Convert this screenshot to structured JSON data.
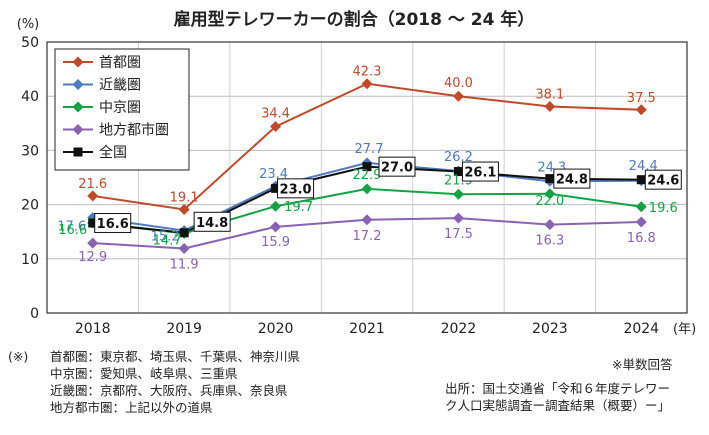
{
  "chart_data": {
    "type": "line",
    "title": "雇用型テレワーカーの割合（2018 ～ 24 年）",
    "ylabel": "(%)",
    "x_unit_label": "(年)",
    "categories": [
      "2018",
      "2019",
      "2020",
      "2021",
      "2022",
      "2023",
      "2024"
    ],
    "ylim": [
      0,
      50
    ],
    "yticks": [
      "0",
      "10",
      "20",
      "30",
      "40",
      "50"
    ],
    "grid": true,
    "legend_position": "top-left",
    "series": [
      {
        "name": "首都圏",
        "color": "#c0492a",
        "marker": "diamond",
        "values": [
          21.6,
          19.1,
          34.4,
          42.3,
          40.0,
          38.1,
          37.5
        ],
        "labels": [
          "21.6",
          "19.1",
          "34.4",
          "42.3",
          "40.0",
          "38.1",
          "37.5"
        ]
      },
      {
        "name": "近畿圏",
        "color": "#4f79c0",
        "marker": "diamond",
        "values": [
          17.6,
          15.2,
          23.4,
          27.7,
          26.2,
          24.3,
          24.4
        ],
        "labels": [
          "17.6",
          "15.2",
          "23.4",
          "27.7",
          "26.2",
          "24.3",
          "24.4"
        ]
      },
      {
        "name": "中京圏",
        "color": "#12a345",
        "marker": "diamond",
        "values": [
          16.6,
          14.7,
          19.7,
          22.9,
          21.9,
          22.0,
          19.6
        ],
        "labels": [
          "16.6",
          "14.7",
          "19.7",
          "22.9",
          "21.9",
          "22.0",
          "19.6"
        ]
      },
      {
        "name": "地方都市圏",
        "color": "#8a62b4",
        "marker": "diamond",
        "values": [
          12.9,
          11.9,
          15.9,
          17.2,
          17.5,
          16.3,
          16.8
        ],
        "labels": [
          "12.9",
          "11.9",
          "15.9",
          "17.2",
          "17.5",
          "16.3",
          "16.8"
        ]
      },
      {
        "name": "全国",
        "color": "#111111",
        "marker": "square",
        "values": [
          16.6,
          14.8,
          23.0,
          27.0,
          26.1,
          24.8,
          24.6
        ],
        "labels": [
          "16.6",
          "14.8",
          "23.0",
          "27.0",
          "26.1",
          "24.8",
          "24.6"
        ]
      }
    ]
  },
  "footnotes": {
    "marker": "(※)",
    "lines": [
      "首都圏：東京都、埼玉県、千葉県、神奈川県",
      "中京圏：愛知県、岐阜県、三重県",
      "近畿圏：京都府、大阪府、兵庫県、奈良県",
      "地方都市圏：上記以外の道県"
    ],
    "note": "※単数回答",
    "source": [
      "出所：国土交通省「令和６年度テレワー",
      "ク人口実態調査ー調査結果（概要）ー」"
    ]
  }
}
